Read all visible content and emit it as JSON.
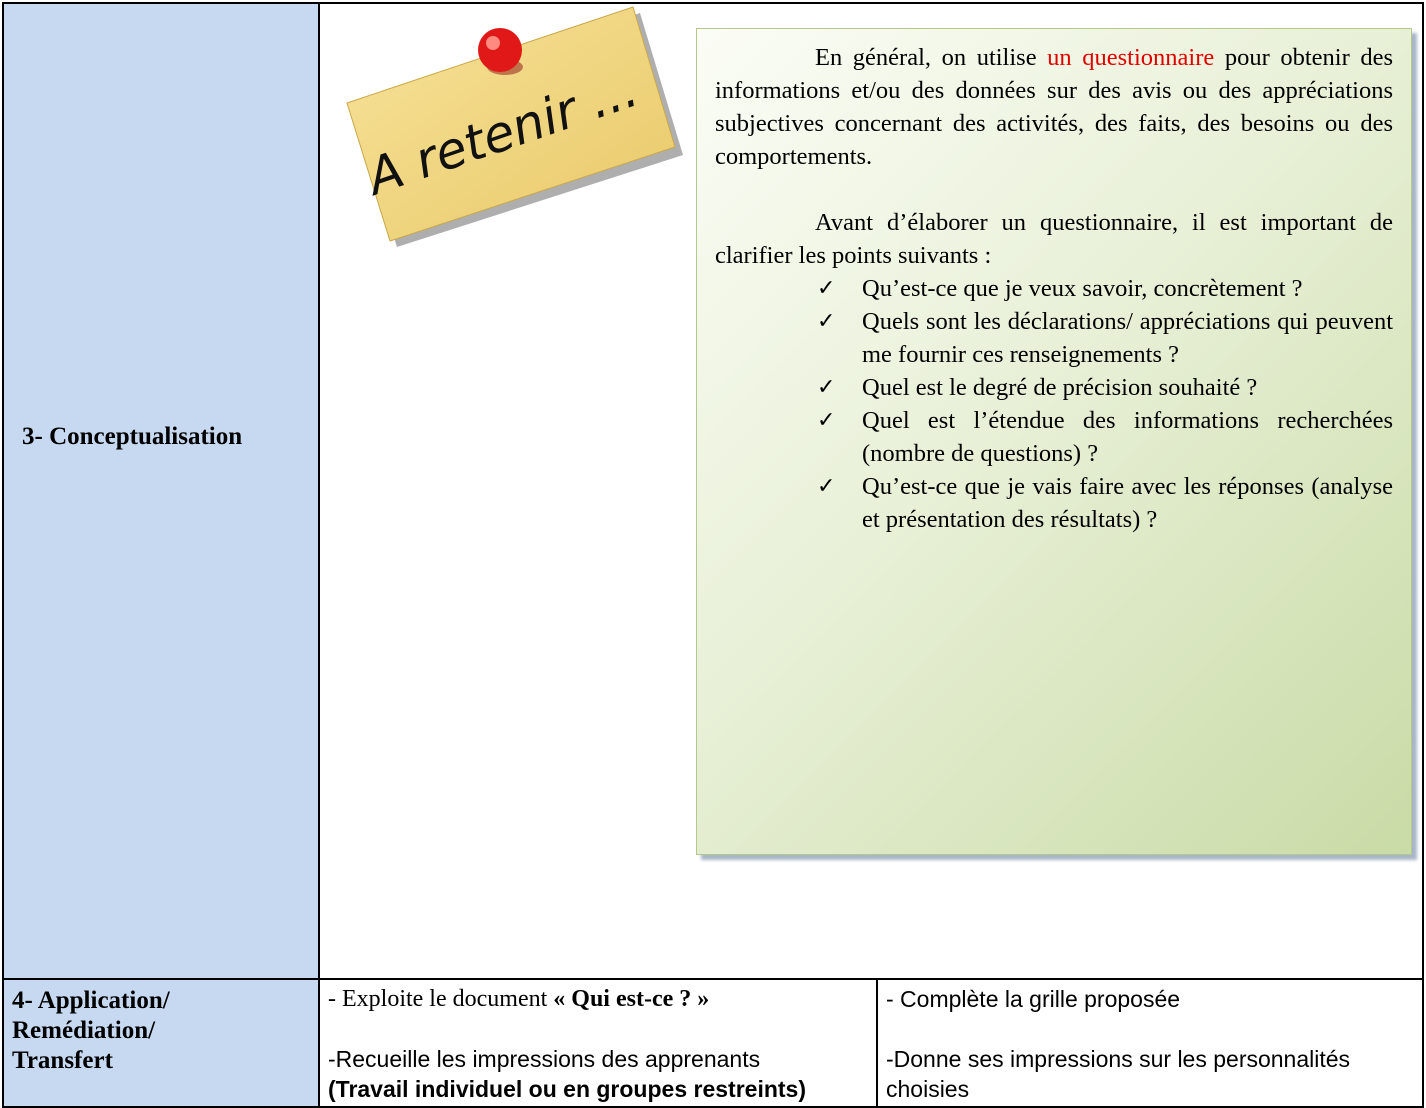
{
  "table": {
    "rows": [
      {
        "label": "3- Conceptualisation",
        "note": "A retenir ...",
        "box": {
          "p1": [
            "En général, on utilise ",
            "un questionnaire",
            " pour obtenir des informations et/ou des données sur des avis ou des appréciations subjectives concernant des activités, des faits, des besoins ou des comportements."
          ],
          "p2": "Avant d’élaborer un questionnaire, il est important de clarifier les points suivants :",
          "items": [
            "Qu’est-ce que je veux savoir, concrètement ?",
            "Quels sont les déclarations/ appréciations qui peuvent me fournir ces renseignements ?",
            "Quel est le degré de précision souhaité ?",
            "Quel est l’étendue des informations recherchées (nombre de questions) ?",
            "Qu’est-ce que je vais faire avec les réponses (analyse et présentation des résultats) ?"
          ]
        }
      },
      {
        "label": [
          "4- Application/",
          "Remédiation/",
          "Transfert"
        ],
        "teacher": {
          "line1": [
            "- Exploite le document ",
            "« Qui est-ce ? »"
          ],
          "line2": "-Recueille les impressions des apprenants",
          "line3": "(Travail individuel ou en groupes restreints)"
        },
        "learner": {
          "line1": "- Complète la grille proposée",
          "line2": "-Donne ses impressions sur les personnalités choisies"
        }
      }
    ]
  }
}
